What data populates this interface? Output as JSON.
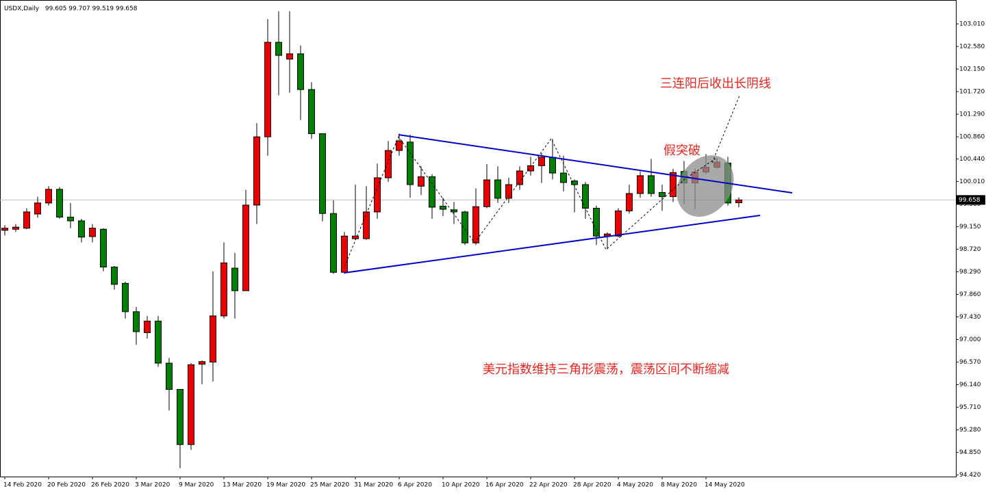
{
  "chart_data": {
    "type": "candlestick",
    "symbol": "USDX,Daily",
    "categories": [
      "14 Feb 2020",
      null,
      null,
      null,
      "20 Feb 2020",
      null,
      null,
      null,
      "26 Feb 2020",
      null,
      null,
      null,
      "3 Mar 2020",
      null,
      null,
      null,
      "9 Mar 2020",
      null,
      null,
      null,
      "13 Mar 2020",
      null,
      null,
      null,
      "19 Mar 2020",
      null,
      null,
      null,
      "25 Mar 2020",
      null,
      null,
      null,
      "31 Mar 2020",
      null,
      null,
      null,
      "6 Apr 2020",
      null,
      null,
      null,
      "10 Apr 2020",
      null,
      null,
      null,
      "16 Apr 2020",
      null,
      null,
      null,
      "22 Apr 2020",
      null,
      null,
      null,
      "28 Apr 2020",
      null,
      null,
      null,
      "4 May 2020",
      null,
      null,
      null,
      "8 May 2020",
      null,
      null,
      null,
      "14 May 2020",
      null,
      null,
      null
    ],
    "open": [
      99.08,
      99.1,
      99.12,
      99.39,
      99.6,
      99.86,
      99.33,
      99.26,
      98.96,
      99.1,
      98.38,
      98.07,
      97.53,
      97.13,
      97.35,
      96.55,
      96.05,
      95.0,
      96.53,
      96.57,
      97.45,
      98.36,
      97.93,
      99.56,
      100.86,
      102.66,
      102.34,
      102.44,
      101.76,
      100.92,
      99.4,
      98.28,
      98.92,
      98.92,
      99.43,
      100.08,
      100.6,
      100.76,
      99.92,
      100.1,
      99.54,
      99.47,
      99.43,
      98.84,
      99.53,
      100.04,
      99.69,
      99.95,
      100.21,
      100.31,
      100.47,
      100.17,
      100.02,
      99.95,
      99.5,
      98.97,
      98.97,
      99.45,
      99.78,
      100.12,
      99.8,
      99.72,
      100.2,
      99.98,
      100.19,
      100.28,
      100.36,
      99.605
    ],
    "high": [
      99.18,
      99.2,
      99.5,
      99.72,
      99.92,
      99.9,
      99.6,
      99.3,
      99.2,
      99.12,
      98.4,
      98.1,
      97.62,
      97.45,
      97.45,
      96.65,
      96.05,
      96.55,
      96.6,
      98.3,
      98.85,
      98.65,
      99.85,
      101.12,
      103.1,
      103.25,
      103.25,
      102.6,
      101.9,
      100.9,
      99.65,
      99.05,
      99.95,
      99.92,
      100.35,
      100.78,
      100.92,
      100.9,
      100.3,
      100.15,
      99.7,
      99.62,
      99.45,
      99.88,
      100.34,
      100.3,
      100.08,
      100.3,
      100.48,
      100.55,
      100.82,
      100.5,
      100.05,
      100.0,
      99.55,
      99.04,
      99.5,
      99.95,
      100.2,
      100.44,
      99.95,
      100.25,
      100.4,
      100.25,
      100.53,
      100.46,
      100.48,
      99.707
    ],
    "low": [
      98.98,
      99.05,
      99.1,
      99.32,
      99.55,
      99.3,
      99.12,
      98.85,
      98.85,
      98.3,
      97.95,
      97.4,
      96.9,
      97.02,
      96.48,
      95.65,
      94.55,
      94.9,
      96.15,
      96.2,
      97.4,
      97.4,
      97.93,
      99.2,
      100.5,
      101.65,
      101.7,
      101.18,
      100.82,
      99.25,
      98.25,
      98.25,
      98.9,
      98.9,
      99.3,
      100.0,
      100.5,
      99.7,
      99.75,
      99.3,
      99.35,
      99.2,
      98.8,
      98.8,
      99.5,
      99.6,
      99.6,
      99.85,
      100.12,
      99.98,
      100.05,
      99.82,
      99.42,
      99.3,
      98.8,
      98.72,
      98.95,
      99.4,
      99.7,
      99.72,
      99.45,
      99.62,
      99.58,
      99.48,
      100.15,
      100.25,
      99.55,
      99.519
    ],
    "close": [
      99.12,
      99.14,
      99.43,
      99.6,
      99.86,
      99.33,
      99.26,
      98.95,
      99.12,
      98.38,
      98.05,
      97.53,
      97.15,
      97.35,
      96.55,
      96.05,
      95.0,
      96.52,
      96.58,
      97.45,
      98.46,
      97.93,
      99.56,
      100.86,
      102.66,
      102.41,
      102.44,
      101.76,
      100.92,
      99.4,
      98.28,
      98.97,
      98.97,
      99.43,
      100.08,
      100.6,
      100.78,
      99.95,
      100.1,
      99.52,
      99.48,
      99.43,
      98.84,
      99.53,
      100.04,
      99.69,
      99.95,
      100.21,
      100.31,
      100.47,
      100.17,
      99.99,
      99.95,
      99.5,
      98.97,
      99.01,
      99.45,
      99.78,
      100.12,
      99.78,
      99.72,
      100.18,
      99.98,
      100.19,
      100.28,
      100.38,
      99.6,
      99.658
    ],
    "up_color": "#ee0000",
    "down_color": "#008000",
    "price_line_color": "#c0c0c0",
    "ylim": [
      94.39,
      103.4
    ],
    "yticks": [
      {
        "value": 103.01,
        "label": "103.010"
      },
      {
        "value": 102.58,
        "label": "102.580"
      },
      {
        "value": 102.15,
        "label": "102.150"
      },
      {
        "value": 101.72,
        "label": "101.720"
      },
      {
        "value": 101.29,
        "label": "101.290"
      },
      {
        "value": 100.86,
        "label": "100.860"
      },
      {
        "value": 100.44,
        "label": "100.440"
      },
      {
        "value": 100.01,
        "label": "100.010"
      },
      {
        "value": 99.58,
        "label": "99.580"
      },
      {
        "value": 99.15,
        "label": "99.150"
      },
      {
        "value": 98.72,
        "label": "98.720"
      },
      {
        "value": 98.29,
        "label": "98.290"
      },
      {
        "value": 97.86,
        "label": "97.860"
      },
      {
        "value": 97.43,
        "label": "97.430"
      },
      {
        "value": 97.0,
        "label": "97.000"
      },
      {
        "value": 96.57,
        "label": "96.570"
      },
      {
        "value": 96.14,
        "label": "96.140"
      },
      {
        "value": 95.71,
        "label": "95.710"
      },
      {
        "value": 95.28,
        "label": "95.280"
      },
      {
        "value": 94.85,
        "label": "94.850"
      },
      {
        "value": 94.42,
        "label": "94.420"
      }
    ],
    "grid": false,
    "annotations": [
      "三连阳后收出长阴线",
      "假突破",
      "美元指数维持三角形震荡，震荡区间不断缩减"
    ]
  }
}
